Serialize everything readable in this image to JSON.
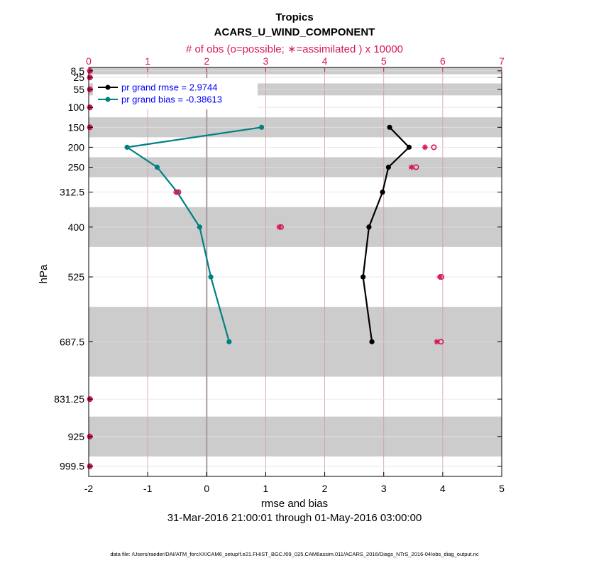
{
  "chart_data": {
    "type": "line",
    "title": "Tropics",
    "subtitle": "ACARS_U_WIND_COMPONENT",
    "top_axis_label": "# of obs (o=possible; ∗=assimilated ) x 10000",
    "xlabel": "rmse and bias",
    "ylabel": "hPa",
    "date_range": "31-Mar-2016 21:00:01 through 01-May-2016 03:00:00",
    "footer": "data file: /Users/raeder/DAI/ATM_forcXX/CAM6_setup/f.e21.FHIST_BGC.f09_025.CAM6assim.011/ACARS_2016/Diags_NTrS_2016-04/obs_diag_output.nc",
    "xlim": [
      -2,
      5
    ],
    "x_ticks": [
      "-2",
      "-1",
      "0",
      "1",
      "2",
      "3",
      "4",
      "5"
    ],
    "top_xlim": [
      0,
      7
    ],
    "top_ticks": [
      "0",
      "1",
      "2",
      "3",
      "4",
      "5",
      "6",
      "7"
    ],
    "ylim_hPa": [
      1025,
      0
    ],
    "y_ticks": [
      "8.5",
      "25",
      "55",
      "100",
      "150",
      "200",
      "250",
      "312.5",
      "400",
      "525",
      "687.5",
      "831.25",
      "925",
      "999.5"
    ],
    "bands": [
      [
        0,
        17
      ],
      [
        40,
        70
      ],
      [
        125,
        175
      ],
      [
        225,
        275
      ],
      [
        350,
        450
      ],
      [
        600,
        775
      ],
      [
        875,
        975
      ]
    ],
    "colors": {
      "rmse": "#000000",
      "bias": "#008080",
      "obs": "#d6185c",
      "zero_line": "#a89aa0",
      "band": "#cccccc"
    },
    "series": [
      {
        "name": "pr grand rmse = 2.9744",
        "key": "rmse",
        "points": [
          [
            3.1,
            150
          ],
          [
            3.43,
            200
          ],
          [
            3.08,
            250
          ],
          [
            2.98,
            312.5
          ],
          [
            2.75,
            400
          ],
          [
            2.65,
            525
          ],
          [
            2.8,
            687.5
          ]
        ]
      },
      {
        "name": "pr grand bias = -0.38613",
        "key": "bias",
        "points": [
          [
            0.93,
            150
          ],
          [
            -1.35,
            200
          ],
          [
            -0.84,
            250
          ],
          [
            -0.5,
            312.5
          ],
          [
            -0.12,
            400
          ],
          [
            0.07,
            525
          ],
          [
            0.38,
            687.5
          ]
        ]
      }
    ],
    "obs_possible": [
      [
        0.02,
        8.5
      ],
      [
        0.02,
        25
      ],
      [
        0.02,
        55
      ],
      [
        0.02,
        100
      ],
      [
        0.02,
        150
      ],
      [
        5.85,
        200
      ],
      [
        5.55,
        250
      ],
      [
        1.52,
        312.5
      ],
      [
        3.26,
        400
      ],
      [
        5.98,
        525
      ],
      [
        5.97,
        687.5
      ],
      [
        0.02,
        831.25
      ],
      [
        0.02,
        925
      ],
      [
        0.02,
        999.5
      ]
    ],
    "obs_assimilated": [
      [
        0.02,
        8.5
      ],
      [
        0.02,
        25
      ],
      [
        0.02,
        55
      ],
      [
        0.02,
        100
      ],
      [
        0.02,
        150
      ],
      [
        5.7,
        200
      ],
      [
        5.47,
        250
      ],
      [
        1.48,
        312.5
      ],
      [
        3.23,
        400
      ],
      [
        5.95,
        525
      ],
      [
        5.9,
        687.5
      ],
      [
        0.02,
        831.25
      ],
      [
        0.02,
        925
      ],
      [
        0.02,
        999.5
      ]
    ]
  }
}
